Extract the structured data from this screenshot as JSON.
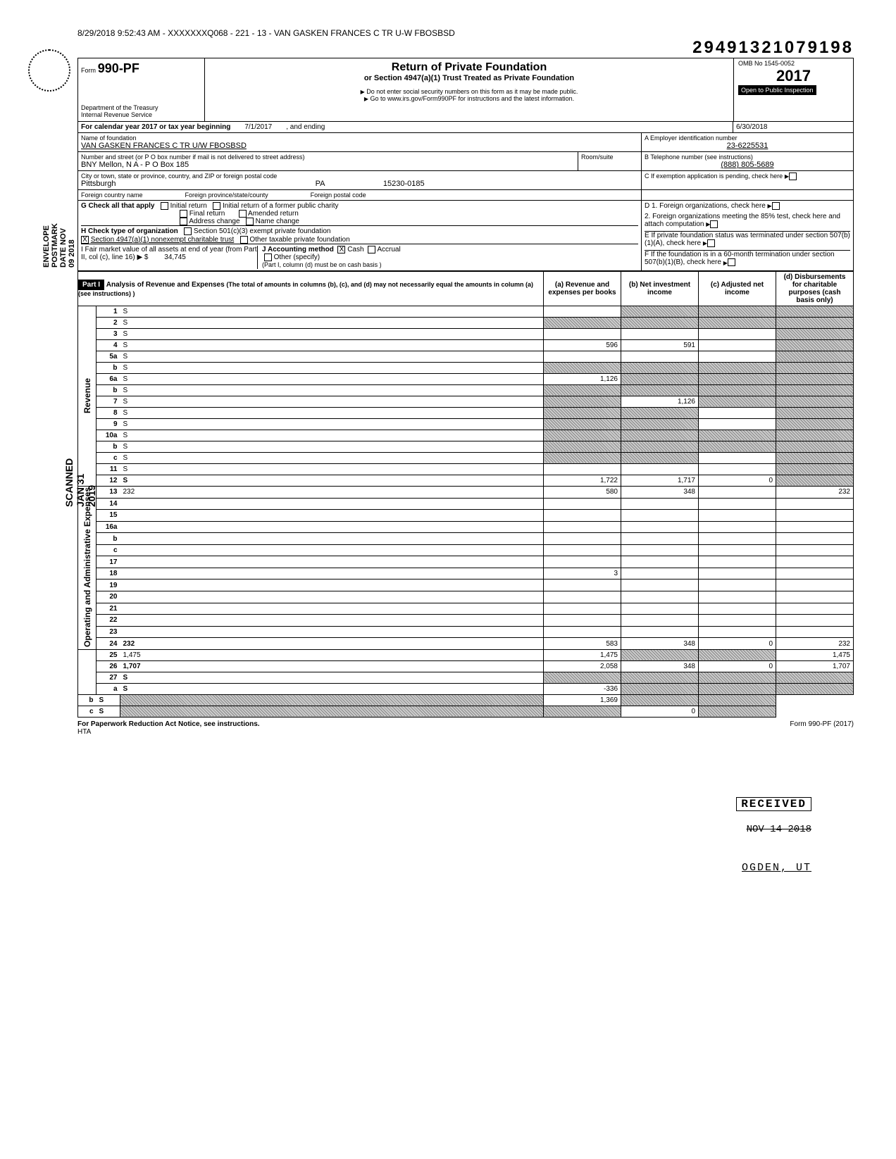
{
  "header_stamp": "8/29/2018 9:52:43 AM - XXXXXXXQ068 - 221 - 13 - VAN GASKEN FRANCES C TR U-W FBOSBSD",
  "big_number": "29491321079198",
  "form": {
    "prefix": "Form",
    "number": "990-PF",
    "dept": "Department of the Treasury",
    "irs": "Internal Revenue Service",
    "title": "Return of Private Foundation",
    "subtitle": "or Section 4947(a)(1) Trust Treated as Private Foundation",
    "warn": "Do not enter social security numbers on this form as it may be made public.",
    "goto": "Go to www.irs.gov/Form990PF for instructions and the latest information.",
    "omb": "OMB No 1545-0052",
    "year": "2017",
    "inspect": "Open to Public Inspection"
  },
  "period": {
    "label": "For calendar year 2017 or tax year beginning",
    "begin": "7/1/2017",
    "mid": ", and ending",
    "end": "6/30/2018"
  },
  "A": {
    "label_name": "Name of foundation",
    "name": "VAN GASKEN FRANCES C TR U/W FBOSBSD",
    "label_addr": "Number and street (or P O  box number if mail is not delivered to street address)",
    "addr": "BNY Mellon, N A  - P O Box 185",
    "room_label": "Room/suite",
    "label_city": "City or town, state or province, country, and ZIP or foreign postal code",
    "city": "Pittsburgh",
    "state": "PA",
    "zip": "15230-0185",
    "fc_label": "Foreign country name",
    "fp_label": "Foreign province/state/county",
    "fz_label": "Foreign postal code",
    "ein_label": "A  Employer identification number",
    "ein": "23-6225531",
    "tel_label": "B  Telephone number (see instructions)",
    "tel": "(888) 805-5689",
    "c_label": "C  If exemption application is pending, check here"
  },
  "checks": {
    "G": "G   Check all that apply",
    "ir": "Initial return",
    "irf": "Initial return of a former public charity",
    "fr": "Final return",
    "ar": "Amended return",
    "ac": "Address change",
    "nc": "Name change",
    "H": "H   Check type of organization",
    "h1": "Section 501(c)(3) exempt private foundation",
    "h2": "Section 4947(a)(1) nonexempt charitable trust",
    "h3": "Other taxable private foundation",
    "I": "I    Fair market value of all assets at end of year (from Part II, col  (c), line 16) ▶ $",
    "Ival": "34,745",
    "J": "J   Accounting method",
    "cash": "Cash",
    "accrual": "Accrual",
    "other": "Other (specify)",
    "J_note": "(Part I, column (d) must be on cash basis )",
    "D1": "D  1. Foreign organizations, check here",
    "D2": "2. Foreign organizations meeting the 85% test, check here and attach computation",
    "E": "E  If private foundation status was terminated under section 507(b)(1)(A), check here",
    "F": "F  If the foundation is in a 60-month termination under section 507(b)(1)(B), check here"
  },
  "part1": {
    "tag": "Part I",
    "title": "Analysis of Revenue and Expenses",
    "note": "(The total of amounts in columns (b), (c), and (d) may not necessarily equal the amounts in column (a) (see instructions) )",
    "col_a": "(a) Revenue and expenses per books",
    "col_b": "(b) Net investment income",
    "col_c": "(c) Adjusted net income",
    "col_d": "(d) Disbursements for charitable purposes (cash basis only)"
  },
  "side": {
    "revenue": "Revenue",
    "admin": "Operating and Administrative Expenses",
    "scanned": "SCANNED JAN 31 2019",
    "postmark": "ENVELOPE POSTMARK DATE NOV 09 2018"
  },
  "lines": [
    {
      "n": "1",
      "d": "S",
      "a": "",
      "b": "S",
      "c": "S"
    },
    {
      "n": "2",
      "d": "S",
      "a": "S",
      "b": "S",
      "c": "S"
    },
    {
      "n": "3",
      "d": "S",
      "a": "",
      "b": "",
      "c": ""
    },
    {
      "n": "4",
      "d": "S",
      "a": "596",
      "b": "591",
      "c": ""
    },
    {
      "n": "5a",
      "d": "S",
      "a": "",
      "b": "",
      "c": ""
    },
    {
      "n": "b",
      "d": "S",
      "a": "S",
      "b": "S",
      "c": "S"
    },
    {
      "n": "6a",
      "d": "S",
      "a": "1,126",
      "b": "S",
      "c": "S"
    },
    {
      "n": "b",
      "d": "S",
      "a": "S",
      "b": "S",
      "c": "S"
    },
    {
      "n": "7",
      "d": "S",
      "a": "S",
      "b": "1,126",
      "c": "S"
    },
    {
      "n": "8",
      "d": "S",
      "a": "S",
      "b": "S",
      "c": ""
    },
    {
      "n": "9",
      "d": "S",
      "a": "S",
      "b": "S",
      "c": ""
    },
    {
      "n": "10a",
      "d": "S",
      "a": "S",
      "b": "S",
      "c": "S"
    },
    {
      "n": "b",
      "d": "S",
      "a": "S",
      "b": "S",
      "c": "S"
    },
    {
      "n": "c",
      "d": "S",
      "a": "S",
      "b": "S",
      "c": ""
    },
    {
      "n": "11",
      "d": "S",
      "a": "",
      "b": "",
      "c": ""
    },
    {
      "n": "12",
      "d": "S",
      "a": "1,722",
      "b": "1,717",
      "c": "0"
    },
    {
      "n": "13",
      "d": "232",
      "a": "580",
      "b": "348",
      "c": ""
    },
    {
      "n": "14",
      "d": "",
      "a": "",
      "b": "",
      "c": ""
    },
    {
      "n": "15",
      "d": "",
      "a": "",
      "b": "",
      "c": ""
    },
    {
      "n": "16a",
      "d": "",
      "a": "",
      "b": "",
      "c": ""
    },
    {
      "n": "b",
      "d": "",
      "a": "",
      "b": "",
      "c": ""
    },
    {
      "n": "c",
      "d": "",
      "a": "",
      "b": "",
      "c": ""
    },
    {
      "n": "17",
      "d": "",
      "a": "",
      "b": "",
      "c": ""
    },
    {
      "n": "18",
      "d": "",
      "a": "3",
      "b": "",
      "c": ""
    },
    {
      "n": "19",
      "d": "",
      "a": "",
      "b": "",
      "c": ""
    },
    {
      "n": "20",
      "d": "",
      "a": "",
      "b": "",
      "c": ""
    },
    {
      "n": "21",
      "d": "",
      "a": "",
      "b": "",
      "c": ""
    },
    {
      "n": "22",
      "d": "",
      "a": "",
      "b": "",
      "c": ""
    },
    {
      "n": "23",
      "d": "",
      "a": "",
      "b": "",
      "c": ""
    },
    {
      "n": "24",
      "d": "232",
      "a": "583",
      "b": "348",
      "c": "0"
    },
    {
      "n": "25",
      "d": "1,475",
      "a": "1,475",
      "b": "S",
      "c": "S"
    },
    {
      "n": "26",
      "d": "1,707",
      "a": "2,058",
      "b": "348",
      "c": "0"
    },
    {
      "n": "27",
      "d": "S",
      "a": "S",
      "b": "S",
      "c": "S"
    },
    {
      "n": "a",
      "d": "S",
      "a": "-336",
      "b": "S",
      "c": "S"
    },
    {
      "n": "b",
      "d": "S",
      "a": "S",
      "b": "1,369",
      "c": "S"
    },
    {
      "n": "c",
      "d": "S",
      "a": "S",
      "b": "S",
      "c": "0"
    }
  ],
  "stamps": {
    "received": "RECEIVED",
    "nov14": "NOV 14 2018",
    "ogden": "OGDEN, UT"
  },
  "footer": {
    "left": "For Paperwork Reduction Act Notice, see instructions.",
    "hta": "HTA",
    "right": "Form 990-PF (2017)"
  }
}
